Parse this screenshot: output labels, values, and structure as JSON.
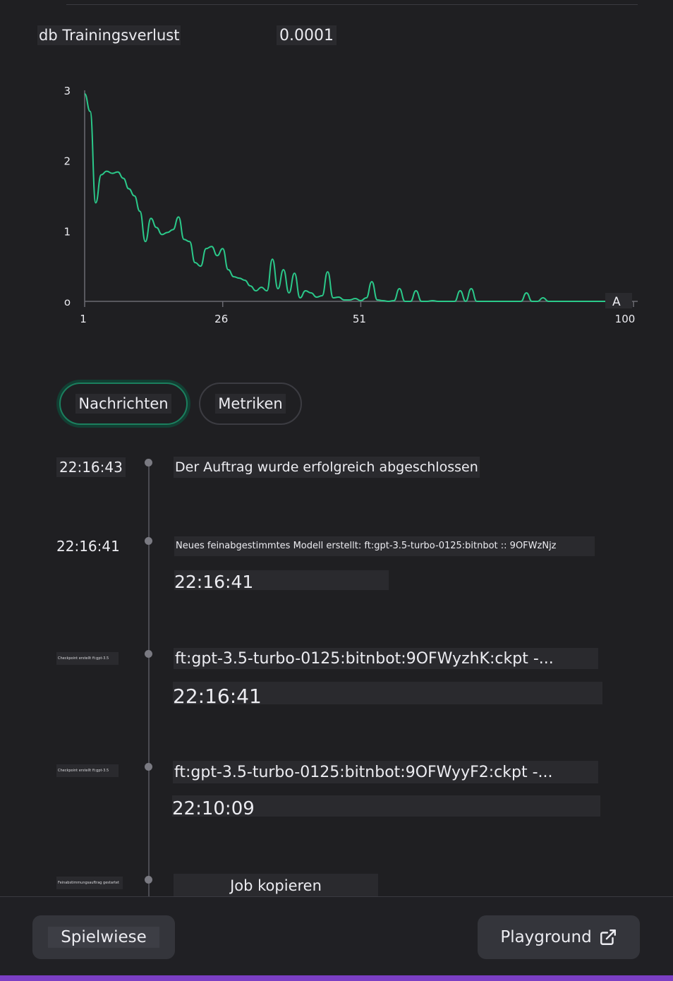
{
  "metric": {
    "label": "db Trainingsverlust",
    "value": "0.0001"
  },
  "chart_data": {
    "type": "line",
    "xlabel": "",
    "ylabel": "",
    "x_ticks": [
      "1",
      "26",
      "51",
      "100"
    ],
    "y_ticks": [
      "3",
      "2",
      "1",
      "o"
    ],
    "xlim": [
      1,
      100
    ],
    "ylim": [
      0,
      3
    ],
    "corner_label": "A",
    "line_color": "#2bc98a",
    "series": [
      {
        "values": [
          [
            1,
            2.95
          ],
          [
            2,
            2.7
          ],
          [
            3,
            1.4
          ],
          [
            4,
            1.8
          ],
          [
            5,
            1.85
          ],
          [
            6,
            1.82
          ],
          [
            7,
            1.84
          ],
          [
            8,
            1.75
          ],
          [
            9,
            1.6
          ],
          [
            10,
            1.5
          ],
          [
            11,
            1.28
          ],
          [
            12,
            0.85
          ],
          [
            13,
            1.18
          ],
          [
            14,
            1.05
          ],
          [
            15,
            0.95
          ],
          [
            16,
            0.98
          ],
          [
            17,
            1.02
          ],
          [
            18,
            1.2
          ],
          [
            19,
            0.88
          ],
          [
            20,
            0.85
          ],
          [
            21,
            0.55
          ],
          [
            22,
            0.5
          ],
          [
            23,
            0.75
          ],
          [
            24,
            0.78
          ],
          [
            25,
            0.65
          ],
          [
            26,
            0.75
          ],
          [
            27,
            0.45
          ],
          [
            28,
            0.35
          ],
          [
            29,
            0.33
          ],
          [
            30,
            0.3
          ],
          [
            31,
            0.22
          ],
          [
            32,
            0.15
          ],
          [
            33,
            0.2
          ],
          [
            34,
            0.15
          ],
          [
            35,
            0.6
          ],
          [
            36,
            0.18
          ],
          [
            37,
            0.45
          ],
          [
            38,
            0.12
          ],
          [
            39,
            0.4
          ],
          [
            40,
            0.05
          ],
          [
            41,
            0.15
          ],
          [
            42,
            0.12
          ],
          [
            43,
            0.06
          ],
          [
            44,
            0.08
          ],
          [
            45,
            0.42
          ],
          [
            46,
            0.05
          ],
          [
            47,
            0.06
          ],
          [
            48,
            0.02
          ],
          [
            49,
            0.02
          ],
          [
            50,
            0.04
          ],
          [
            51,
            0.01
          ],
          [
            52,
            0.05
          ],
          [
            53,
            0.28
          ],
          [
            54,
            0.02
          ],
          [
            55,
            0.01
          ],
          [
            56,
            0.0
          ],
          [
            57,
            0.01
          ],
          [
            58,
            0.18
          ],
          [
            59,
            0.0
          ],
          [
            60,
            0.0
          ],
          [
            61,
            0.15
          ],
          [
            62,
            0.0
          ],
          [
            63,
            0.0
          ],
          [
            64,
            0.01
          ],
          [
            65,
            0.0
          ],
          [
            66,
            0.0
          ],
          [
            67,
            0.0
          ],
          [
            68,
            0.0
          ],
          [
            69,
            0.15
          ],
          [
            70,
            0.0
          ],
          [
            71,
            0.18
          ],
          [
            72,
            0.0
          ],
          [
            73,
            0.0
          ],
          [
            74,
            0.0
          ],
          [
            75,
            0.0
          ],
          [
            76,
            0.0
          ],
          [
            77,
            0.0
          ],
          [
            78,
            0.0
          ],
          [
            79,
            0.0
          ],
          [
            80,
            0.0
          ],
          [
            81,
            0.12
          ],
          [
            82,
            0.0
          ],
          [
            83,
            0.0
          ],
          [
            84,
            0.05
          ],
          [
            85,
            0.0
          ],
          [
            86,
            0.0
          ],
          [
            87,
            0.0
          ],
          [
            88,
            0.0
          ],
          [
            89,
            0.0
          ],
          [
            90,
            0.0
          ],
          [
            91,
            0.0
          ],
          [
            92,
            0.0
          ],
          [
            93,
            0.0
          ],
          [
            94,
            0.0
          ],
          [
            95,
            0.0
          ]
        ]
      }
    ]
  },
  "tabs": {
    "messages": "Nachrichten",
    "metrics": "Metriken"
  },
  "timeline": {
    "events": [
      {
        "time": "22:16:43",
        "message": "Der Auftrag wurde erfolgreich abgeschlossen"
      },
      {
        "time": "22:16:41",
        "message": "Neues feinabgestimmtes Modell erstellt: ft:gpt-3.5-turbo-0125:bitnbot :: 9OFWzNjz",
        "sub": "22:16:41"
      },
      {
        "time": "Checkpoint erstellt ft:gpt-3.5",
        "message": "ft:gpt-3.5-turbo-0125:bitnbot:9OFWyzhK:ckpt -...",
        "sub": "22:16:41"
      },
      {
        "time": "Checkpoint erstellt ft:gpt-3.5",
        "message": "ft:gpt-3.5-turbo-0125:bitnbot:9OFWyyF2:ckpt -...",
        "sub": "22:10:09"
      },
      {
        "time": "Feinabstimmungsauftrag gestartet",
        "message": "Job kopieren"
      }
    ]
  },
  "footer": {
    "left_button": "Spielwiese",
    "right_button": "Playground"
  },
  "colors": {
    "accent": "#2bc98a",
    "tab_active_border": "#1b7f5e",
    "bottom_strip": "#7b3fc4"
  }
}
